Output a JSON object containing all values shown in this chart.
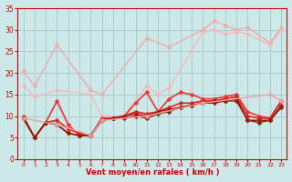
{
  "background_color": "#cce8e8",
  "grid_color": "#aacccc",
  "xlabel": "Vent moyen/en rafales ( km/h )",
  "xlabel_color": "#cc0000",
  "tick_color": "#cc0000",
  "xlim": [
    -0.5,
    23.5
  ],
  "ylim": [
    0,
    35
  ],
  "yticks": [
    0,
    5,
    10,
    15,
    20,
    25,
    30,
    35
  ],
  "xticks": [
    0,
    1,
    2,
    3,
    4,
    5,
    6,
    7,
    8,
    9,
    10,
    11,
    12,
    13,
    14,
    15,
    16,
    17,
    18,
    19,
    20,
    21,
    22,
    23
  ],
  "series": [
    {
      "x": [
        0,
        1,
        3,
        6,
        7,
        11,
        13,
        16,
        17,
        18,
        19,
        20,
        22,
        23
      ],
      "y": [
        20.5,
        17,
        26.5,
        16,
        15,
        28,
        26,
        30,
        32,
        31,
        30,
        30.5,
        27,
        30.5
      ],
      "color": "#f0aaaa",
      "lw": 1.0,
      "marker": "D",
      "ms": 2.5,
      "connect": true
    },
    {
      "x": [
        0,
        1,
        3,
        6,
        7,
        9,
        11,
        12,
        13,
        16,
        17,
        18,
        19,
        20,
        22,
        23
      ],
      "y": [
        17,
        14.5,
        16,
        15,
        10,
        10,
        17,
        15,
        16.5,
        29.5,
        30,
        29,
        29.5,
        29,
        26.5,
        30
      ],
      "color": "#f4b8b8",
      "lw": 1.0,
      "marker": "D",
      "ms": 2.5,
      "connect": true
    },
    {
      "x": [
        0,
        1,
        2,
        3,
        4,
        5,
        6,
        7,
        8,
        9,
        10,
        11,
        12,
        13,
        14,
        15,
        16,
        17,
        18,
        19,
        20,
        21,
        22,
        23
      ],
      "y": [
        10,
        5,
        8.5,
        13.5,
        8,
        5.5,
        5.5,
        9.5,
        9.5,
        10,
        13,
        15.5,
        11,
        14,
        15.5,
        15,
        14,
        14,
        14.5,
        15,
        11,
        10,
        9.5,
        13.5
      ],
      "color": "#ee3333",
      "lw": 1.2,
      "marker": "D",
      "ms": 2.5,
      "connect": true
    },
    {
      "x": [
        0,
        1,
        2,
        3,
        4,
        5,
        6,
        7,
        8,
        9,
        10,
        11,
        12,
        13,
        14,
        15,
        16,
        17,
        18,
        19,
        20,
        21,
        22,
        23
      ],
      "y": [
        9.5,
        5,
        8.5,
        9,
        7,
        6,
        5.5,
        9,
        9.5,
        10,
        11,
        10.5,
        11,
        12,
        13,
        13,
        13.5,
        13.5,
        14,
        14.5,
        10,
        9.5,
        9.5,
        13.5
      ],
      "color": "#dd2222",
      "lw": 1.2,
      "marker": "D",
      "ms": 2.5,
      "connect": true
    },
    {
      "x": [
        0,
        1,
        2,
        3,
        4,
        5,
        6,
        7,
        8,
        9,
        10,
        11,
        12,
        13,
        14,
        15,
        16,
        17,
        18,
        19,
        20,
        21,
        22,
        23
      ],
      "y": [
        9.5,
        5,
        8.5,
        8,
        6,
        5.5,
        5.5,
        9,
        9.5,
        10,
        10.5,
        10,
        11,
        11.5,
        12,
        12.5,
        13,
        13.5,
        13.5,
        14,
        9,
        9,
        9,
        12.5
      ],
      "color": "#bb1111",
      "lw": 1.1,
      "marker": "D",
      "ms": 2.5,
      "connect": true
    },
    {
      "x": [
        0,
        1,
        2,
        3,
        4,
        5,
        6,
        7,
        8,
        9,
        10,
        11,
        12,
        13,
        14,
        15,
        16,
        17,
        18,
        19,
        20,
        21,
        22,
        23
      ],
      "y": [
        9.5,
        5,
        8.5,
        8,
        6,
        5.5,
        5.5,
        9,
        9.5,
        9.5,
        10,
        9.5,
        10.5,
        11,
        12,
        12.5,
        13,
        13,
        13.5,
        13.5,
        9,
        8.5,
        9,
        12
      ],
      "color": "#882200",
      "lw": 1.0,
      "marker": "D",
      "ms": 2.5,
      "connect": true
    },
    {
      "x": [
        0,
        3,
        6,
        7,
        11,
        16,
        22,
        23
      ],
      "y": [
        9.5,
        8,
        5.5,
        9,
        10,
        13,
        15,
        13.5
      ],
      "color": "#f0a0a0",
      "lw": 1.0,
      "marker": "D",
      "ms": 2.5,
      "connect": true
    }
  ]
}
